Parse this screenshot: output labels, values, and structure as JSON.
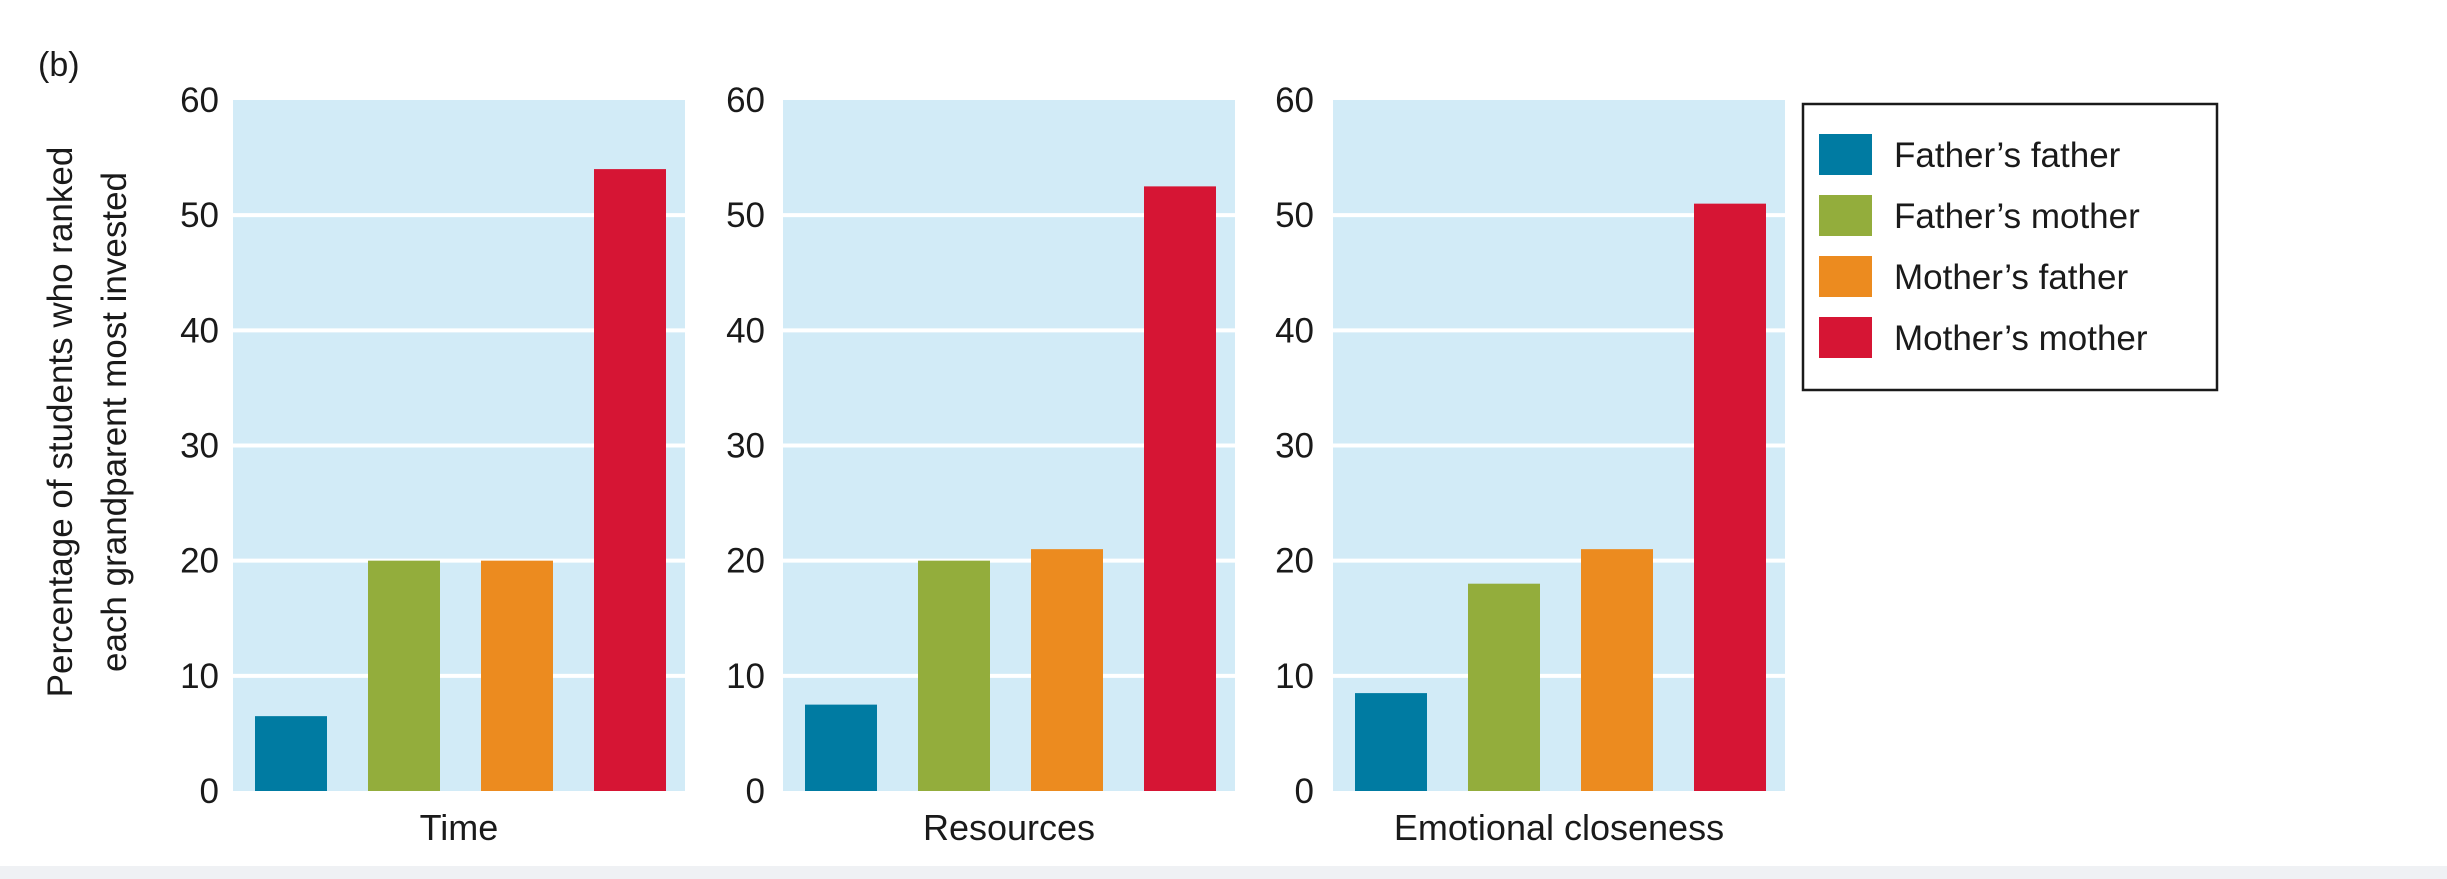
{
  "panel_label": "(b)",
  "chart_data": [
    {
      "type": "bar",
      "categories": [
        "Father’s father",
        "Father’s mother",
        "Mother’s father",
        "Mother’s mother"
      ],
      "values": [
        6.5,
        20,
        20,
        54
      ],
      "xlabel": "Time",
      "ylabel": "Percentage of students who ranked each grandparent most invested",
      "ylim": [
        0,
        60
      ],
      "yticks": [
        "0",
        "10",
        "20",
        "30",
        "40",
        "50",
        "60"
      ],
      "grid": true
    },
    {
      "type": "bar",
      "categories": [
        "Father’s father",
        "Father’s mother",
        "Mother’s father",
        "Mother’s mother"
      ],
      "values": [
        7.5,
        20,
        21,
        52.5
      ],
      "xlabel": "Resources",
      "ylim": [
        0,
        60
      ],
      "yticks": [
        "0",
        "10",
        "20",
        "30",
        "40",
        "50",
        "60"
      ],
      "grid": true
    },
    {
      "type": "bar",
      "categories": [
        "Father’s father",
        "Father’s mother",
        "Mother’s father",
        "Mother’s mother"
      ],
      "values": [
        8.5,
        18,
        21,
        51
      ],
      "xlabel": "Emotional closeness",
      "ylim": [
        0,
        60
      ],
      "yticks": [
        "0",
        "10",
        "20",
        "30",
        "40",
        "50",
        "60"
      ],
      "grid": true
    }
  ],
  "ylabel_lines": [
    "Percentage of students who ranked",
    "each grandparent most invested"
  ],
  "legend": {
    "placement": "right",
    "items": [
      {
        "label": "Father’s father",
        "color": "#007ba2"
      },
      {
        "label": "Father’s mother",
        "color": "#93ad3c"
      },
      {
        "label": "Mother’s father",
        "color": "#ec8b1f"
      },
      {
        "label": "Mother’s mother",
        "color": "#d61534"
      }
    ]
  },
  "colors": {
    "plot_background": "#d2ebf7",
    "grid": "#ffffff",
    "text": "#1a1a1a"
  }
}
